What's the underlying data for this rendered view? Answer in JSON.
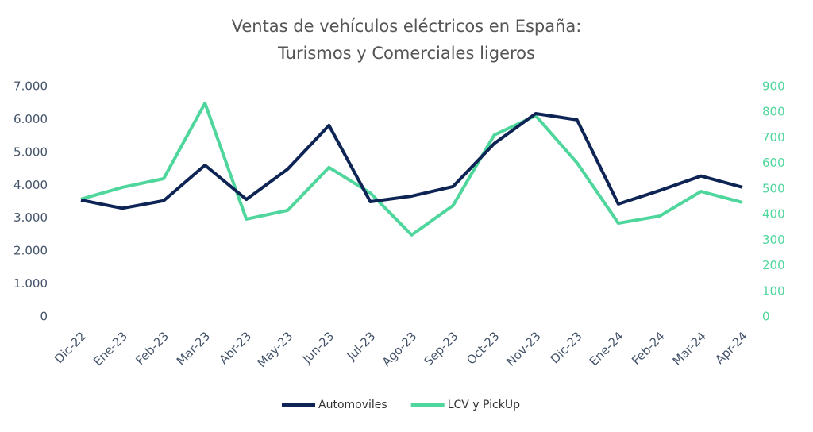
{
  "chart_data": {
    "type": "line",
    "title": [
      "Ventas de vehículos eléctricos en España:",
      "Turismos y Comerciales ligeros"
    ],
    "categories": [
      "Dic-22",
      "Ene-23",
      "Feb-23",
      "Mar-23",
      "Abr-23",
      "May-23",
      "Jun-23",
      "Jul-23",
      "Ago-23",
      "Sep-23",
      "Oct-23",
      "Nov-23",
      "Dic-23",
      "Ene-24",
      "Feb-24",
      "Mar-24",
      "Apr-24"
    ],
    "series": [
      {
        "name": "Automoviles",
        "color": "#0d2455",
        "values": [
          3550,
          3300,
          3530,
          4610,
          3570,
          4490,
          5820,
          3500,
          3670,
          3960,
          5270,
          6180,
          5990,
          3430,
          3840,
          4280,
          3940
        ]
      },
      {
        "name": "LCV y PickUp",
        "color": "#4fd69c",
        "axis": "y2",
        "values": [
          460,
          506,
          540,
          835,
          382,
          416,
          584,
          484,
          320,
          435,
          711,
          786,
          602,
          366,
          394,
          490,
          447
        ]
      }
    ],
    "ylim": [
      0,
      7000
    ],
    "yticks": [
      0,
      {
        "value": 1000,
        "label": "1.000"
      },
      {
        "value": 2000,
        "label": "2.000"
      },
      {
        "value": 3000,
        "label": "3.000"
      },
      {
        "value": 4000,
        "label": "4.000"
      },
      {
        "value": 5000,
        "label": "5.000"
      },
      {
        "value": 6000,
        "label": "6.000"
      },
      {
        "value": 7000,
        "label": "7.000"
      }
    ],
    "y2lim": [
      0,
      900
    ],
    "y2ticks": [
      0,
      100,
      200,
      300,
      400,
      500,
      600,
      700,
      800,
      900
    ],
    "y2color": "#4fd69c",
    "grid": false,
    "legend": "bottom"
  }
}
